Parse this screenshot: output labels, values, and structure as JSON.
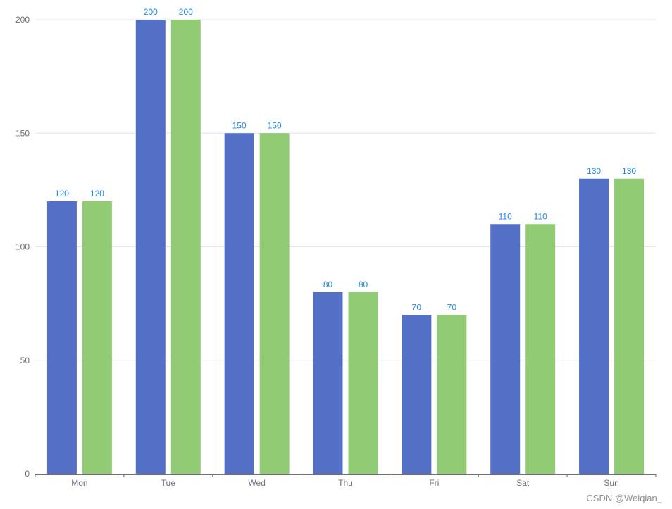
{
  "chart_data": {
    "type": "bar",
    "categories": [
      "Mon",
      "Tue",
      "Wed",
      "Thu",
      "Fri",
      "Sat",
      "Sun"
    ],
    "series": [
      {
        "color": "#5470c6",
        "values": [
          120,
          200,
          150,
          80,
          70,
          110,
          130
        ]
      },
      {
        "color": "#91cc75",
        "values": [
          120,
          200,
          150,
          80,
          70,
          110,
          130
        ]
      }
    ],
    "ylim": [
      0,
      200
    ],
    "yticks": [
      "0",
      "50",
      "100",
      "150",
      "200"
    ],
    "grid": true,
    "data_label_color": "#1e88e5"
  },
  "watermark": "CSDN @Weiqian_"
}
